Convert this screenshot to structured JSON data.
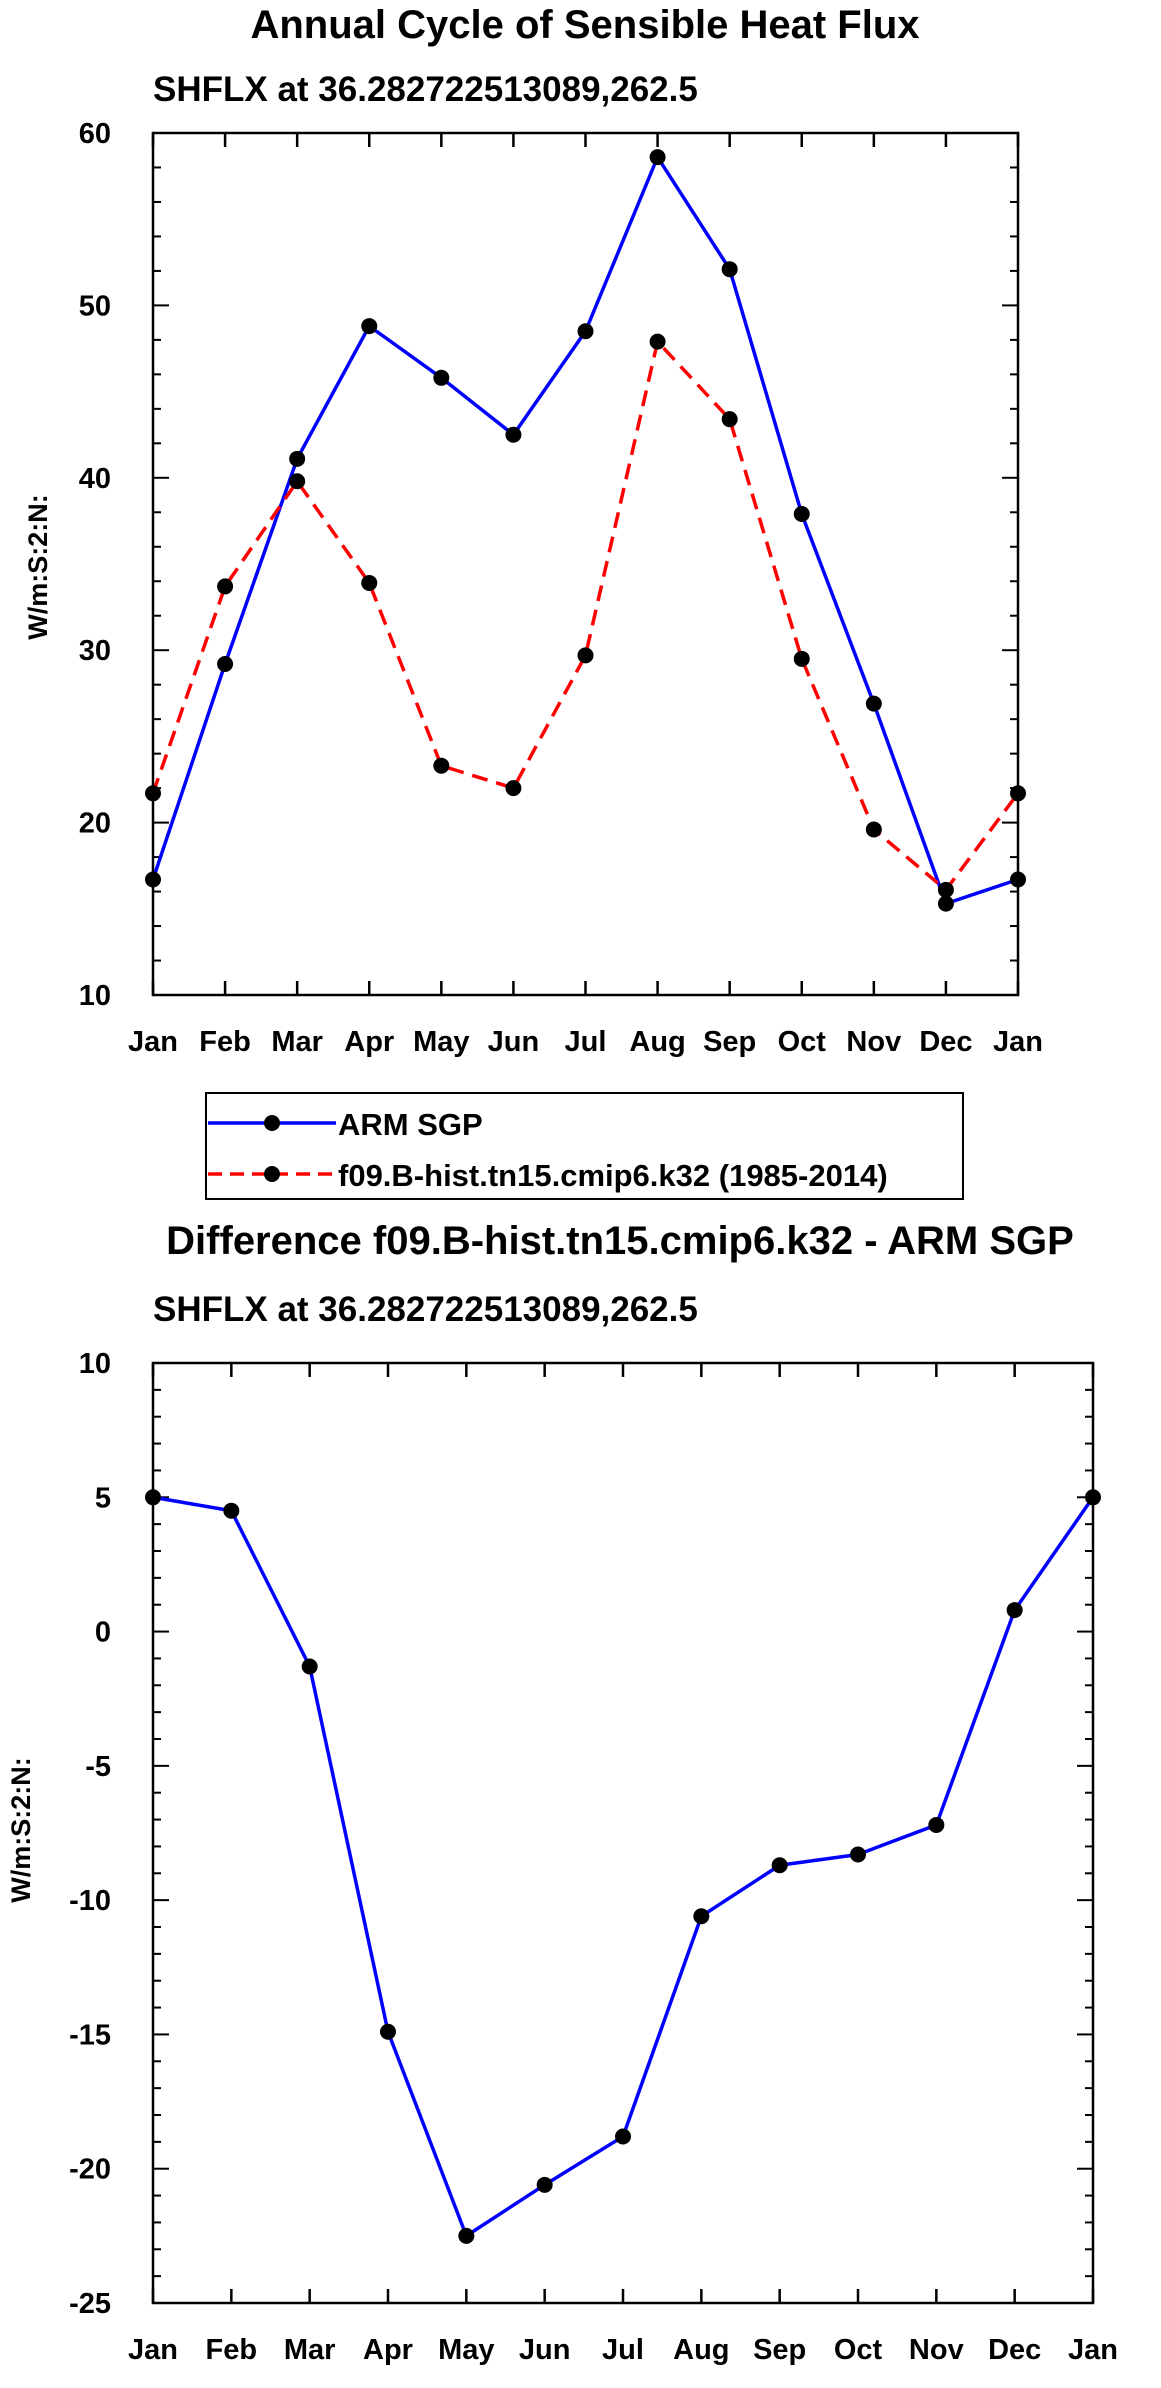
{
  "chart_data": [
    {
      "type": "line",
      "title": "Annual Cycle of Sensible Heat Flux",
      "subtitle": "SHFLX at 36.282722513089,262.5",
      "xlabel": "",
      "ylabel": "W/m:S:2:N:",
      "categories": [
        "Jan",
        "Feb",
        "Mar",
        "Apr",
        "May",
        "Jun",
        "Jul",
        "Aug",
        "Sep",
        "Oct",
        "Nov",
        "Dec",
        "Jan"
      ],
      "ylim": [
        10,
        60
      ],
      "yticks": [
        "10",
        "20",
        "30",
        "40",
        "50",
        "60"
      ],
      "legend": "bottom",
      "series": [
        {
          "name": "ARM SGP",
          "color": "#0000ff",
          "style": "solid",
          "values": [
            16.7,
            29.2,
            41.1,
            48.8,
            45.8,
            42.5,
            48.5,
            58.6,
            52.1,
            37.9,
            26.9,
            15.3,
            16.7
          ]
        },
        {
          "name": "f09.B-hist.tn15.cmip6.k32 (1985-2014)",
          "color": "#ff0000",
          "style": "dashed",
          "values": [
            21.7,
            33.7,
            39.8,
            33.9,
            23.3,
            22.0,
            29.7,
            47.9,
            43.4,
            29.5,
            19.6,
            16.1,
            21.7
          ]
        }
      ]
    },
    {
      "type": "line",
      "title": "Difference f09.B-hist.tn15.cmip6.k32 - ARM SGP",
      "subtitle": "SHFLX at 36.282722513089,262.5",
      "xlabel": "",
      "ylabel": "W/m:S:2:N:",
      "categories": [
        "Jan",
        "Feb",
        "Mar",
        "Apr",
        "May",
        "Jun",
        "Jul",
        "Aug",
        "Sep",
        "Oct",
        "Nov",
        "Dec",
        "Jan"
      ],
      "ylim": [
        -25,
        10
      ],
      "yticks": [
        "-25",
        "-20",
        "-15",
        "-10",
        "-5",
        "0",
        "5",
        "10"
      ],
      "series": [
        {
          "name": "Difference",
          "color": "#0000ff",
          "style": "solid",
          "values": [
            5.0,
            4.5,
            -1.3,
            -14.9,
            -22.5,
            -20.6,
            -18.8,
            -10.6,
            -8.7,
            -8.3,
            -7.2,
            0.8,
            5.0
          ]
        }
      ]
    }
  ]
}
